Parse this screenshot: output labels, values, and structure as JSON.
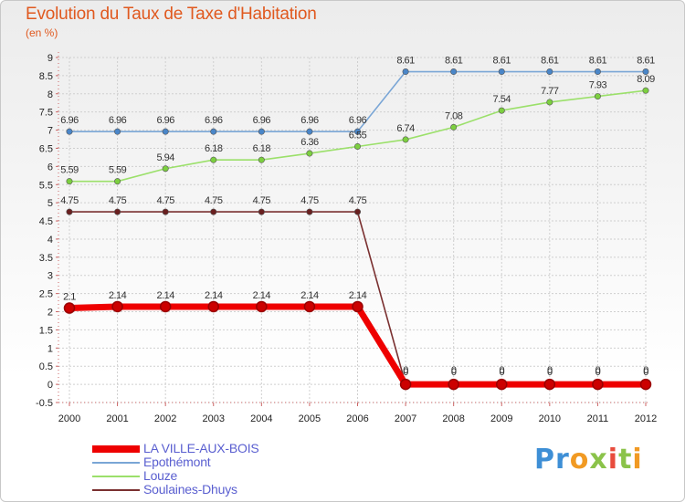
{
  "header": {
    "title": "Evolution du Taux de Taxe d'Habitation",
    "unit": "(en %)"
  },
  "logo": {
    "text": "Proxiti"
  },
  "chart_data": {
    "type": "line",
    "title": "Evolution du Taux de Taxe d'Habitation",
    "subtitle": "(en %)",
    "x": [
      "2000",
      "2001",
      "2002",
      "2003",
      "2004",
      "2005",
      "2006",
      "2007",
      "2008",
      "2009",
      "2010",
      "2011",
      "2012"
    ],
    "ylim": [
      -0.5,
      9
    ],
    "yticks": [
      "-0.5",
      "0",
      "0.5",
      "1",
      "1.5",
      "2",
      "2.5",
      "3",
      "3.5",
      "4",
      "4.5",
      "5",
      "5.5",
      "6",
      "6.5",
      "7",
      "7.5",
      "8",
      "8.5",
      "9"
    ],
    "grid": true,
    "legend_position": "bottom-left",
    "series": [
      {
        "name": "LA VILLE-AUX-BOIS",
        "color": "#ee0000",
        "values": [
          2.1,
          2.14,
          2.14,
          2.14,
          2.14,
          2.14,
          2.14,
          0,
          0,
          0,
          0,
          0,
          0
        ],
        "labels": [
          "2.1",
          "2.14",
          "2.14",
          "2.14",
          "2.14",
          "2.14",
          "2.14",
          "0",
          "0",
          "0",
          "0",
          "0",
          "0"
        ]
      },
      {
        "name": "Epothémont",
        "color": "#7aa6d6",
        "values": [
          6.96,
          6.96,
          6.96,
          6.96,
          6.96,
          6.96,
          6.96,
          8.61,
          8.61,
          8.61,
          8.61,
          8.61,
          8.61
        ],
        "labels": [
          "6.96",
          "6.96",
          "6.96",
          "6.96",
          "6.96",
          "6.96",
          "6.96",
          "8.61",
          "8.61",
          "8.61",
          "8.61",
          "8.61",
          "8.61"
        ]
      },
      {
        "name": "Louze",
        "color": "#9be06a",
        "values": [
          5.59,
          5.59,
          5.94,
          6.18,
          6.18,
          6.36,
          6.55,
          6.74,
          7.08,
          7.54,
          7.77,
          7.93,
          8.09
        ],
        "labels": [
          "5.59",
          "5.59",
          "5.94",
          "6.18",
          "6.18",
          "6.36",
          "6.55",
          "6.74",
          "7.08",
          "7.54",
          "7.77",
          "7.93",
          "8.09"
        ]
      },
      {
        "name": "Soulaines-Dhuys",
        "color": "#7a3030",
        "values": [
          4.75,
          4.75,
          4.75,
          4.75,
          4.75,
          4.75,
          4.75,
          0,
          0,
          0,
          0,
          0,
          0
        ],
        "labels": [
          "4.75",
          "4.75",
          "4.75",
          "4.75",
          "4.75",
          "4.75",
          "4.75",
          "0",
          "0",
          "0",
          "0",
          "0",
          "0"
        ]
      }
    ]
  }
}
